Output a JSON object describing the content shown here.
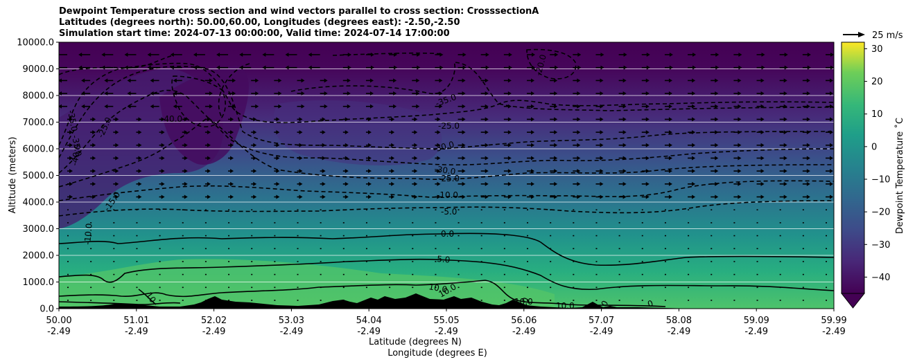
{
  "chart_data": {
    "type": "contourf",
    "title_lines": [
      "Dewpoint Temperature cross section and wind vectors parallel to cross section: CrosssectionA",
      "Latitudes (degrees north): 50.00,60.00, Longitudes (degrees east): -2.50,-2.50",
      "Simulation start time: 2024-07-13 00:00:00, Valid time: 2024-07-14 17:00:00"
    ],
    "ylabel": "Altitude (meters)",
    "xlabel_lines": [
      "Latitude (degrees N)",
      "Longitude (degrees E)"
    ],
    "ylim": [
      0,
      10000
    ],
    "yticks": [
      "0.0",
      "1000.0",
      "2000.0",
      "3000.0",
      "4000.0",
      "5000.0",
      "6000.0",
      "7000.0",
      "8000.0",
      "9000.0",
      "10000.0"
    ],
    "xticks": [
      {
        "lat": "50.00",
        "lon": "-2.49"
      },
      {
        "lat": "51.01",
        "lon": "-2.49"
      },
      {
        "lat": "52.02",
        "lon": "-2.49"
      },
      {
        "lat": "53.03",
        "lon": "-2.49"
      },
      {
        "lat": "54.04",
        "lon": "-2.49"
      },
      {
        "lat": "55.05",
        "lon": "-2.49"
      },
      {
        "lat": "56.06",
        "lon": "-2.49"
      },
      {
        "lat": "57.07",
        "lon": "-2.49"
      },
      {
        "lat": "58.08",
        "lon": "-2.49"
      },
      {
        "lat": "59.09",
        "lon": "-2.49"
      },
      {
        "lat": "59.99",
        "lon": "-2.49"
      }
    ],
    "colorbar": {
      "label": "Dewpoint Temperature ˚C",
      "range": [
        -45,
        32
      ],
      "ticks": [
        "30",
        "20",
        "10",
        "0",
        "−10",
        "−20",
        "−30",
        "−40"
      ],
      "extend": "min"
    },
    "wind_key": "25 m/s",
    "contour_labels": [
      "-35.0",
      "-40.0",
      "-35.0",
      "-25.0",
      "-30.0",
      "-30.0",
      "-25.0",
      "-10.0",
      "-5.0",
      "0.0",
      "5.0",
      "10.0",
      "10.0",
      "-15.0",
      "-10.0",
      "-40.0",
      "-25.0",
      "-35.0",
      "-20.0",
      "10",
      "10",
      "10.0",
      "10.0",
      "0",
      "0"
    ],
    "grid": true
  }
}
